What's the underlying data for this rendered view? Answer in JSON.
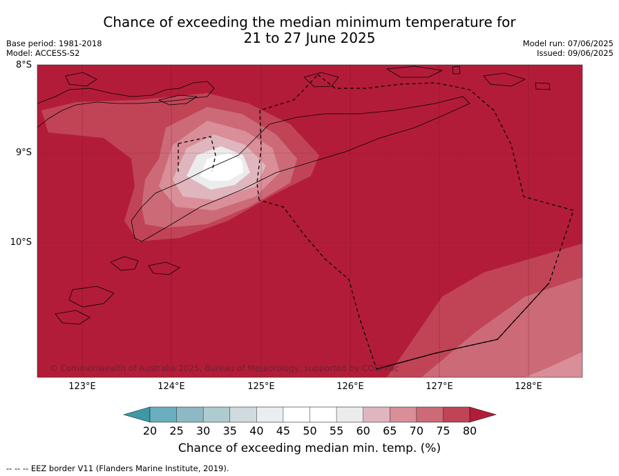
{
  "title_line1": "Chance of exceeding the median minimum temperature for",
  "title_line2": "21 to 27 June 2025",
  "meta_left": [
    "Base period: 1981-2018",
    "Model: ACCESS-S2"
  ],
  "meta_right": [
    "Model run: 07/06/2025",
    "Issued: 09/06/2025"
  ],
  "latitudes": [
    "8°S",
    "9°S",
    "10°S"
  ],
  "longitudes": [
    "123°E",
    "124°E",
    "125°E",
    "126°E",
    "127°E",
    "128°E"
  ],
  "copyright": "© Commonwealth of Australia 2025, Bureau of Meteorology, supported by COSPPac",
  "colorbar": {
    "ticks": [
      "20",
      "25",
      "30",
      "35",
      "40",
      "45",
      "50",
      "55",
      "60",
      "65",
      "70",
      "75",
      "80"
    ],
    "colors": [
      "#3e98a6",
      "#6aafbe",
      "#8db9c4",
      "#aecbd0",
      "#cfdbdf",
      "#e9eff1",
      "#ffffff",
      "#ffffff",
      "#ececec",
      "#e0b6be",
      "#d98e98",
      "#cc6a78",
      "#c04456",
      "#b31c38"
    ],
    "label": "Chance of exceeding median min. temp. (%)"
  },
  "footer": "--  --  -- EEZ border V11 (Flanders Marine Institute, 2019)."
}
